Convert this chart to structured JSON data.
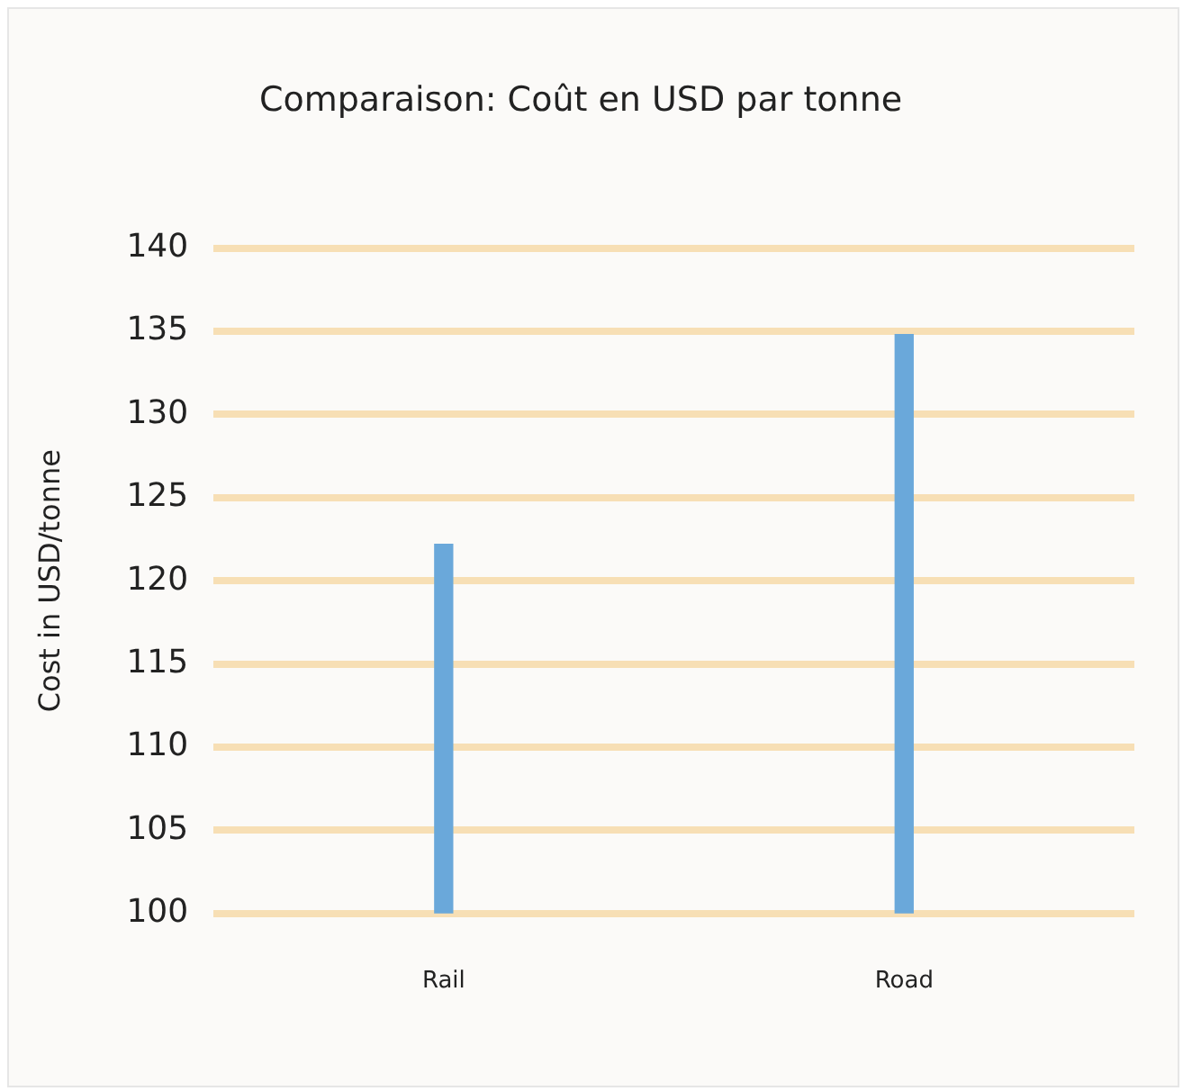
{
  "chart_data": {
    "type": "bar",
    "title": "Comparaison: Coût en USD par tonne",
    "ylabel": "Cost in USD/tonne",
    "categories": [
      "Rail",
      "Road"
    ],
    "values": [
      122.2,
      134.8
    ],
    "color": "#6aa8da",
    "ylim": [
      100,
      140
    ],
    "yticks": [
      100,
      105,
      110,
      115,
      120,
      125,
      130,
      135,
      140
    ],
    "grid": "y",
    "legend": false
  }
}
